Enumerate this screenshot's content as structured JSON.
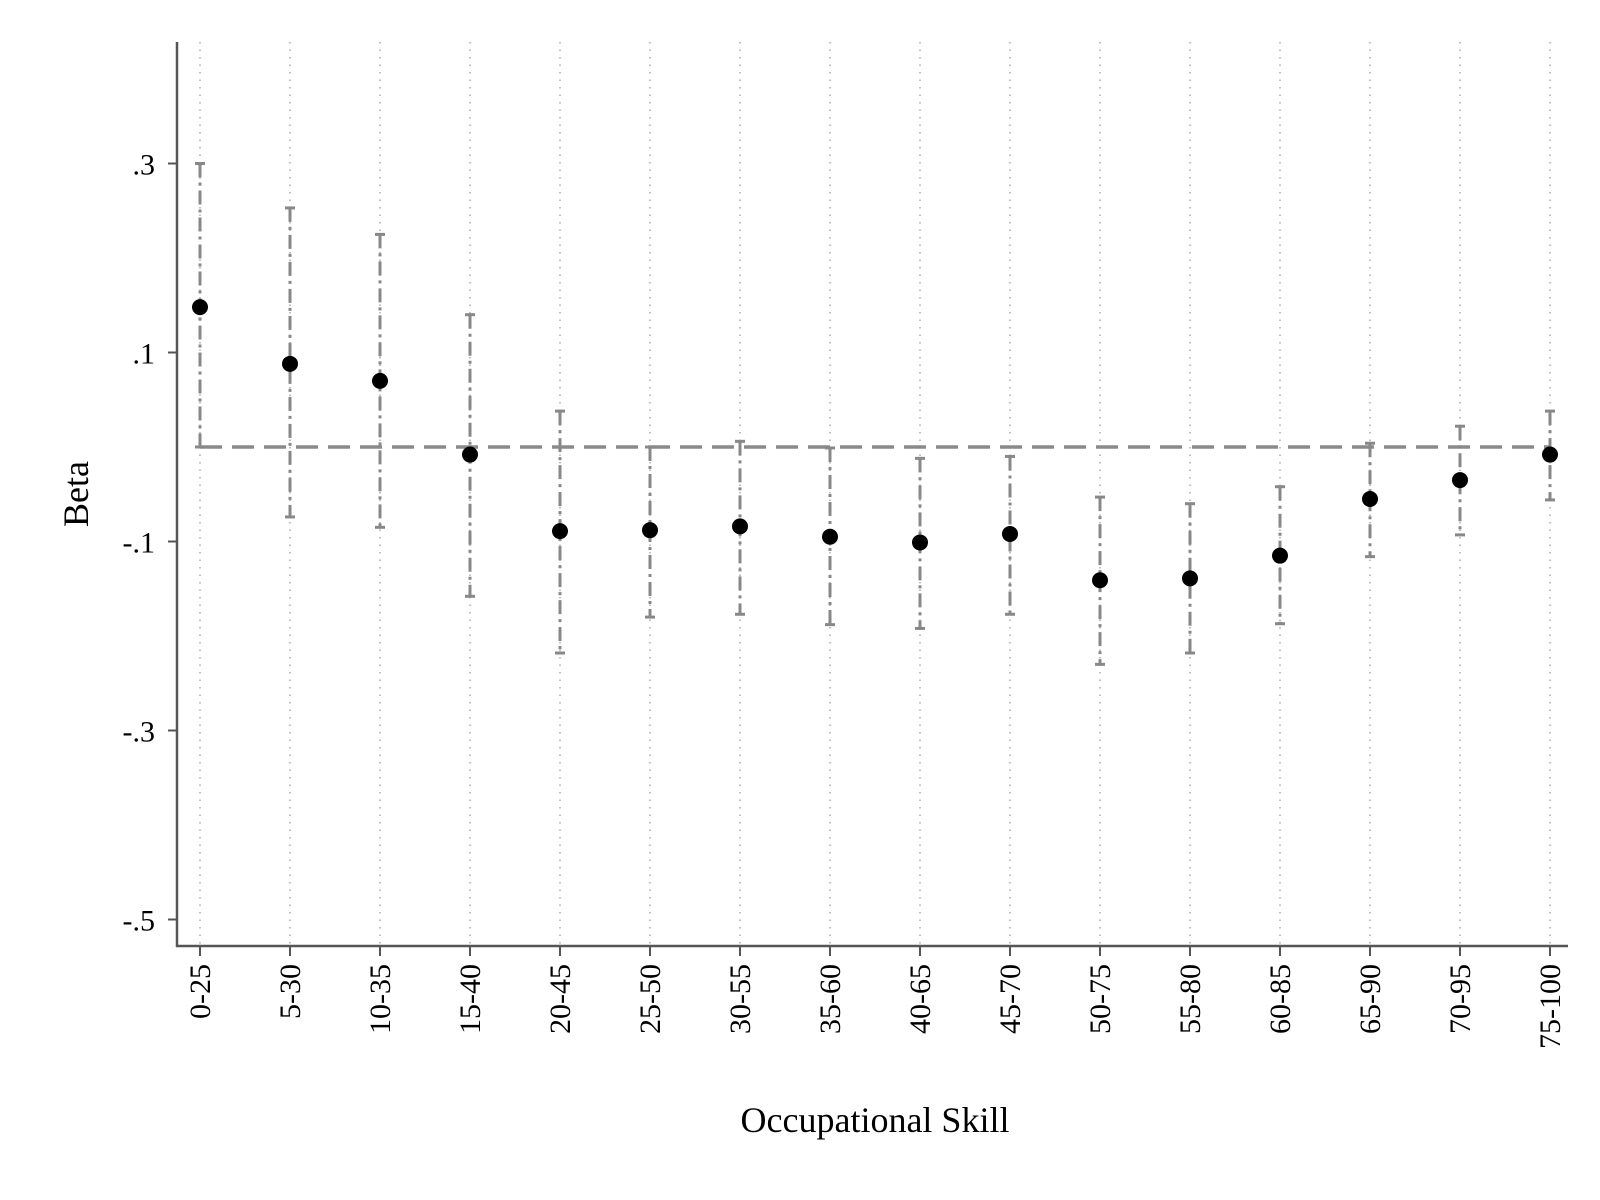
{
  "chart_data": {
    "type": "scatter",
    "title": "",
    "xlabel": "Occupational Skill",
    "ylabel": "Beta",
    "categories": [
      "0-25",
      "5-30",
      "10-35",
      "15-40",
      "20-45",
      "25-50",
      "30-55",
      "35-60",
      "40-65",
      "45-70",
      "50-75",
      "55-80",
      "60-85",
      "65-90",
      "70-95",
      "75-100"
    ],
    "series": [
      {
        "estimate": [
          0.148,
          0.088,
          0.07,
          -0.008,
          -0.089,
          -0.088,
          -0.084,
          -0.095,
          -0.101,
          -0.092,
          -0.141,
          -0.139,
          -0.115,
          -0.055,
          -0.035,
          -0.008
        ],
        "ci_lower": [
          0.0,
          -0.074,
          -0.085,
          -0.158,
          -0.218,
          -0.18,
          -0.177,
          -0.188,
          -0.192,
          -0.177,
          -0.23,
          -0.218,
          -0.187,
          -0.116,
          -0.093,
          -0.056
        ],
        "ci_upper": [
          0.3,
          0.253,
          0.225,
          0.14,
          0.038,
          0.0,
          0.006,
          -0.001,
          -0.012,
          -0.01,
          -0.053,
          -0.06,
          -0.042,
          0.004,
          0.022,
          0.038
        ]
      }
    ],
    "reference_line": 0,
    "ylim": [
      -0.53,
      0.43
    ],
    "yticks": [
      0.3,
      0.1,
      -0.1,
      -0.3,
      -0.5
    ],
    "ytick_labels": [
      ".3",
      ".1",
      "-.1",
      "-.3",
      "-.5"
    ],
    "grid": "vertical dotted",
    "legend": "none",
    "colors": {
      "marker": "#000000",
      "ci": "#888888",
      "reference": "#8a8a8a",
      "grid": "#aaaaaa",
      "axis": "#555555"
    }
  }
}
